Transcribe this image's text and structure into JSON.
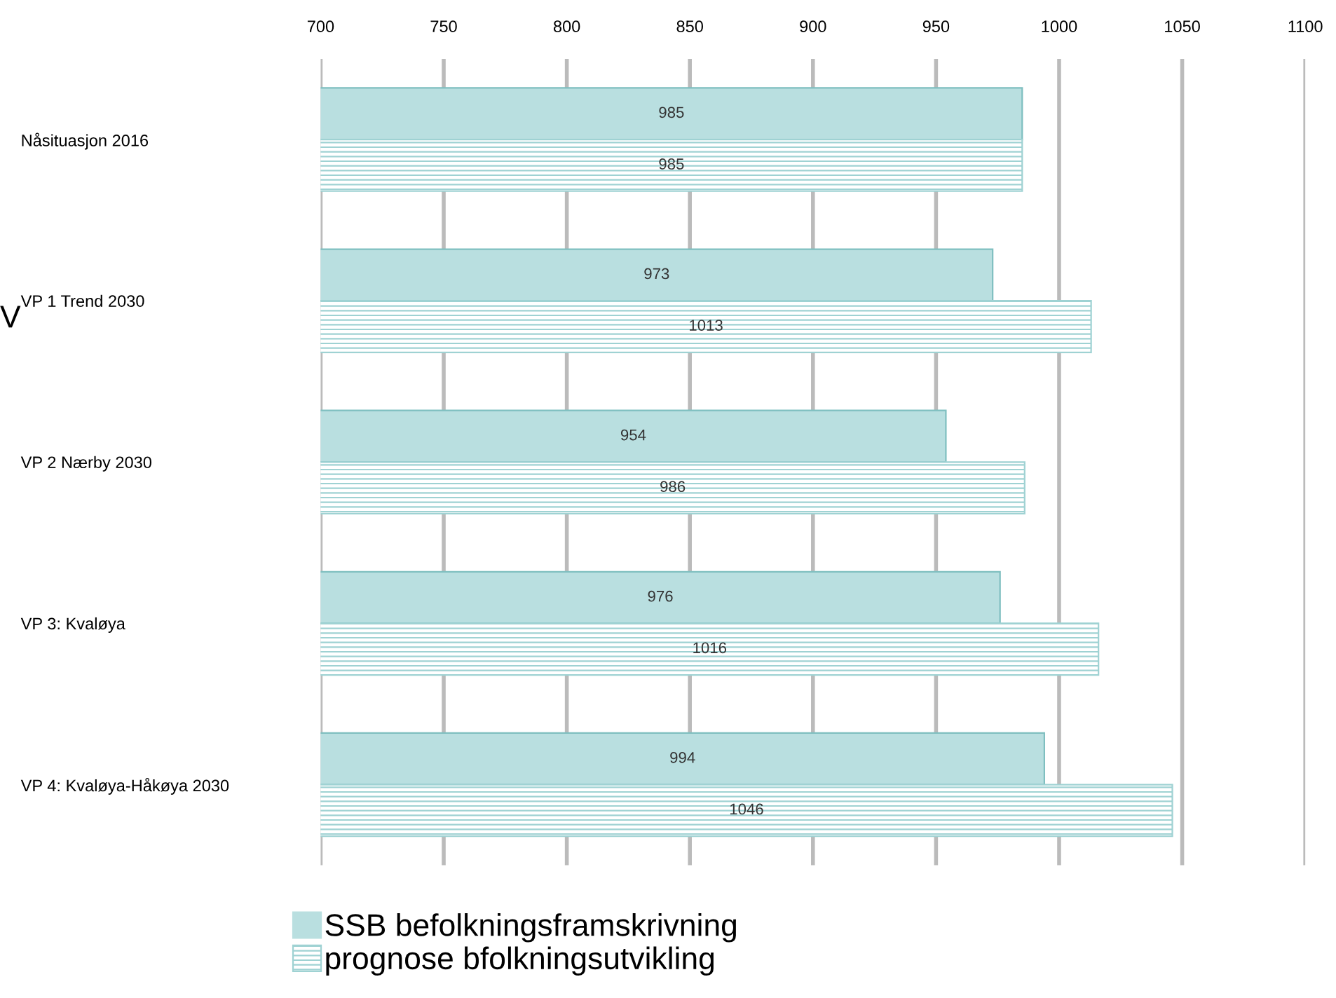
{
  "chart_data": {
    "type": "bar",
    "orientation": "horizontal",
    "categories": [
      "Nåsituasjon 2016",
      "VP 1 Trend 2030",
      "VP 2 Nærby 2030",
      "VP 3: Kvaløya",
      "VP 4: Kvaløya-Håkøya 2030"
    ],
    "series": [
      {
        "name": "SSB befolkningsframskrivning",
        "color": "#b9dfe0",
        "values": [
          985,
          973,
          954,
          976,
          994
        ]
      },
      {
        "name": "prognose bfolkningsutvikling",
        "color": "#9fd2d3",
        "values": [
          985,
          1013,
          986,
          1016,
          1046
        ]
      }
    ],
    "xlim": [
      700,
      1100
    ],
    "xticks": [
      700,
      750,
      800,
      850,
      900,
      950,
      1000,
      1050,
      1100
    ],
    "grid": "x",
    "legend": "bottom",
    "data_labels": true,
    "annotations": [
      "V"
    ]
  }
}
